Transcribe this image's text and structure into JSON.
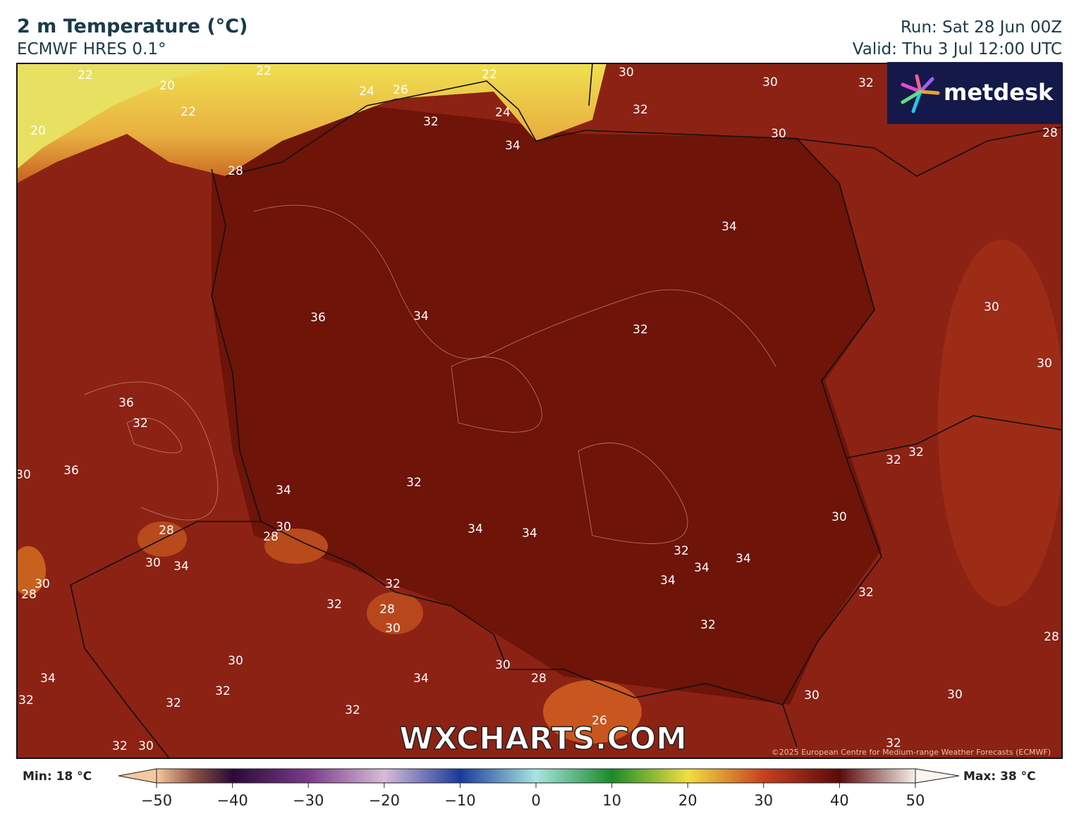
{
  "header": {
    "title": "2 m Temperature (°C)",
    "subtitle": "ECMWF HRES 0.1°",
    "run": "Run: Sat 28 Jun 00Z",
    "valid": "Valid: Thu 3 Jul 12:00 UTC"
  },
  "logo": "metdesk",
  "watermark": "WXCHARTS.COM",
  "copyright": "©2025 European Centre for Medium-range Weather Forecasts (ECMWF)",
  "colorbar": {
    "min_label": "Min: 18 °C",
    "max_label": "Max: 38 °C",
    "lim": [
      -50,
      50
    ],
    "ticks": [
      {
        "value": -50,
        "label": "−50"
      },
      {
        "value": -40,
        "label": "−40"
      },
      {
        "value": -30,
        "label": "−30"
      },
      {
        "value": -20,
        "label": "−20"
      },
      {
        "value": -10,
        "label": "−10"
      },
      0,
      10,
      20,
      30,
      40,
      50
    ]
  },
  "map": {
    "contour_labels": [
      22,
      22,
      20,
      22,
      24,
      26,
      22,
      24,
      20,
      30,
      30,
      32,
      32,
      32,
      34,
      30,
      28,
      28,
      34,
      36,
      34,
      32,
      30,
      30,
      36,
      32,
      36,
      30,
      32,
      32,
      34,
      32,
      30,
      28,
      28,
      30,
      34,
      30,
      28,
      34,
      34,
      30,
      32,
      34,
      34,
      34,
      32,
      32,
      32,
      28,
      30,
      32,
      28,
      30,
      30,
      34,
      34,
      28,
      32,
      32,
      32,
      32,
      30,
      30,
      26,
      32,
      32,
      30
    ]
  }
}
